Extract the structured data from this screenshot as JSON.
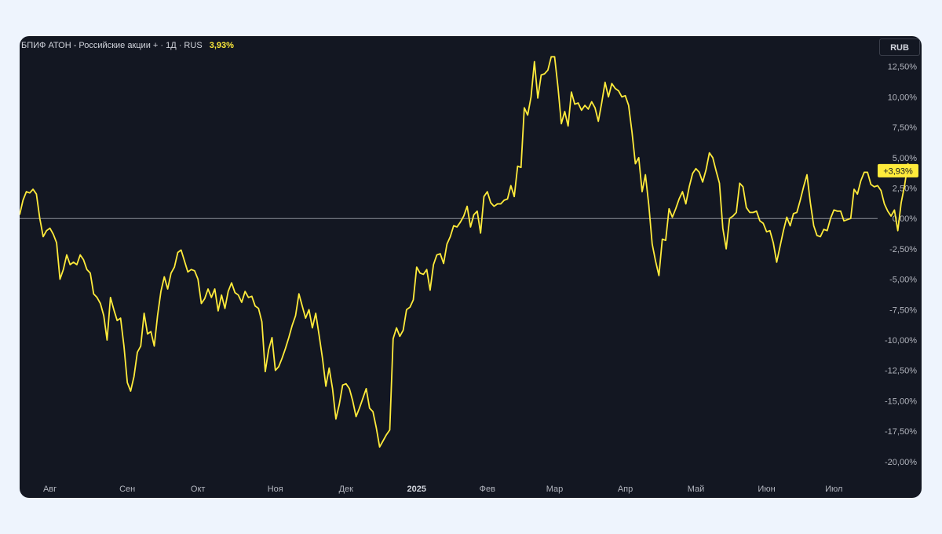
{
  "chart_data": {
    "type": "line",
    "title": "БПИФ АТОН - Российские акции + · 1Д · RUS",
    "return_label": "3,93%",
    "currency": "RUB",
    "line_color": "#ffeb3b",
    "background": "#131722",
    "zero_line_color": "#b2b5be",
    "last_value_label": "+3,93%",
    "ylim": [
      -21.5,
      15
    ],
    "y_ticks": [
      12.5,
      10,
      7.5,
      5,
      2.5,
      0,
      -2.5,
      -5,
      -7.5,
      -10,
      -12.5,
      -15,
      -17.5,
      -20
    ],
    "y_tick_labels": [
      "12,50%",
      "10,00%",
      "7,50%",
      "5,00%",
      "2,50%",
      "0,00%",
      "-2,50%",
      "-5,00%",
      "-7,50%",
      "-10,00%",
      "-12,50%",
      "-15,00%",
      "-17,50%",
      "-20,00%"
    ],
    "x_tick_labels": [
      {
        "label": "Авг",
        "day": 9,
        "bold": false
      },
      {
        "label": "Сен",
        "day": 32,
        "bold": false
      },
      {
        "label": "Окт",
        "day": 53,
        "bold": false
      },
      {
        "label": "Ноя",
        "day": 76,
        "bold": false
      },
      {
        "label": "Дек",
        "day": 97,
        "bold": false
      },
      {
        "label": "2025",
        "day": 118,
        "bold": true
      },
      {
        "label": "Фев",
        "day": 139,
        "bold": false
      },
      {
        "label": "Мар",
        "day": 159,
        "bold": false
      },
      {
        "label": "Апр",
        "day": 180,
        "bold": false
      },
      {
        "label": "Май",
        "day": 201,
        "bold": false
      },
      {
        "label": "Июн",
        "day": 222,
        "bold": false
      },
      {
        "label": "Июл",
        "day": 242,
        "bold": false
      }
    ],
    "x_max": 255,
    "y_values": [
      0.3,
      1.5,
      2.2,
      2.1,
      2.4,
      2.0,
      0.0,
      -1.5,
      -1.0,
      -0.8,
      -1.3,
      -2.0,
      -5.0,
      -4.2,
      -3.0,
      -3.8,
      -3.6,
      -3.8,
      -3.0,
      -3.4,
      -4.2,
      -4.5,
      -6.2,
      -6.5,
      -7.0,
      -8.0,
      -10.0,
      -6.5,
      -7.5,
      -8.4,
      -8.2,
      -10.5,
      -13.5,
      -14.2,
      -13.0,
      -11.0,
      -10.5,
      -7.8,
      -9.5,
      -9.3,
      -10.5,
      -8.0,
      -6.0,
      -4.8,
      -5.8,
      -4.5,
      -4.0,
      -2.8,
      -2.6,
      -3.5,
      -4.4,
      -4.2,
      -4.3,
      -5.0,
      -7.0,
      -6.6,
      -5.8,
      -6.5,
      -5.8,
      -7.6,
      -6.3,
      -7.4,
      -6.0,
      -5.3,
      -6.1,
      -6.3,
      -6.9,
      -6.0,
      -6.5,
      -6.4,
      -7.2,
      -7.4,
      -8.5,
      -12.6,
      -10.8,
      -9.8,
      -12.5,
      -12.2,
      -11.5,
      -10.7,
      -9.8,
      -8.8,
      -8.0,
      -6.2,
      -7.2,
      -8.2,
      -7.5,
      -9.0,
      -7.8,
      -9.6,
      -11.5,
      -13.8,
      -12.3,
      -14.0,
      -16.5,
      -15.3,
      -13.7,
      -13.6,
      -14.0,
      -15.0,
      -16.3,
      -15.6,
      -14.8,
      -14.0,
      -15.6,
      -15.9,
      -17.2,
      -18.8,
      -18.3,
      -17.8,
      -17.4,
      -9.9,
      -9.0,
      -9.7,
      -9.2,
      -7.5,
      -7.3,
      -6.7,
      -4.0,
      -4.5,
      -4.6,
      -4.2,
      -5.9,
      -3.8,
      -3.0,
      -2.9,
      -3.7,
      -2.1,
      -1.5,
      -0.6,
      -0.7,
      -0.3,
      0.2,
      1.0,
      -0.7,
      0.3,
      0.6,
      -1.2,
      1.8,
      2.2,
      1.3,
      1.0,
      1.2,
      1.2,
      1.5,
      1.6,
      2.7,
      1.8,
      4.3,
      4.2,
      9.1,
      8.5,
      10.0,
      12.9,
      9.9,
      11.8,
      11.9,
      12.2,
      13.3,
      13.3,
      10.8,
      7.8,
      8.8,
      7.6,
      10.4,
      9.4,
      9.5,
      8.9,
      9.3,
      9.0,
      9.6,
      9.1,
      8.0,
      9.5,
      11.2,
      10.0,
      11.1,
      10.7,
      10.5,
      10.0,
      10.1,
      9.3,
      7.1,
      4.5,
      5.0,
      2.2,
      3.6,
      1.1,
      -2.1,
      -3.5,
      -4.7,
      -1.7,
      -1.8,
      0.8,
      0.1,
      0.8,
      1.6,
      2.2,
      1.2,
      2.6,
      3.7,
      4.1,
      3.8,
      3.0,
      4.0,
      5.4,
      5.0,
      3.9,
      2.9,
      -0.8,
      -2.5,
      0.0,
      0.2,
      0.5,
      2.9,
      2.6,
      0.9,
      0.5,
      0.5,
      0.6,
      -0.2,
      -0.4,
      -1.1,
      -1.0,
      -2.0,
      -3.6,
      -2.3,
      -1.0,
      0.1,
      -0.6,
      0.4,
      0.5,
      1.5,
      2.6,
      3.6,
      1.3,
      -0.6,
      -1.4,
      -1.5,
      -0.9,
      -1.0,
      0.0,
      0.7,
      0.6,
      0.6,
      -0.2,
      -0.1,
      0.0,
      2.4,
      2.0,
      3.1,
      3.8,
      3.8,
      2.8,
      2.6,
      2.7,
      2.3,
      1.2,
      0.6,
      0.2,
      0.7,
      -1.0,
      1.3,
      2.7,
      4.5,
      3.93
    ]
  }
}
